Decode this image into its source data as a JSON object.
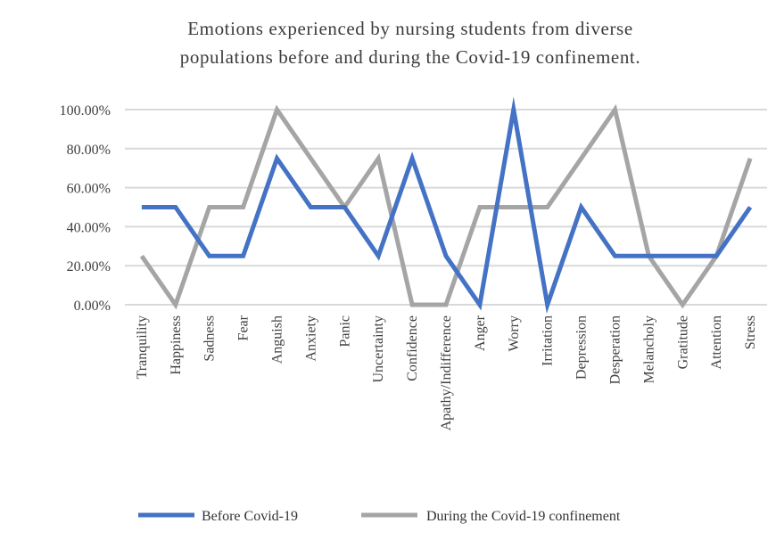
{
  "chart_data": {
    "type": "line",
    "title_lines": [
      "Emotions experienced by nursing students from diverse",
      "populations before and during the Covid-19 confinement."
    ],
    "categories": [
      "Tranquility",
      "Happiness",
      "Sadness",
      "Fear",
      "Anguish",
      "Anxiety",
      "Panic",
      "Uncertainty",
      "Confidence",
      "Apathy/Indifference",
      "Anger",
      "Worry",
      "Irritation",
      "Depression",
      "Desperation",
      "Melancholy",
      "Gratitude",
      "Attention",
      "Stress"
    ],
    "series": [
      {
        "name": "Before Covid-19",
        "color": "#4472c4",
        "values": [
          50,
          50,
          25,
          25,
          75,
          50,
          50,
          25,
          75,
          25,
          0,
          100,
          0,
          50,
          25,
          25,
          25,
          25,
          50
        ]
      },
      {
        "name": "During the Covid-19 confinement",
        "color": "#a5a5a5",
        "values": [
          25,
          0,
          50,
          50,
          100,
          75,
          50,
          75,
          0,
          0,
          50,
          50,
          50,
          75,
          100,
          25,
          0,
          25,
          75
        ]
      }
    ],
    "y_ticks": [
      "0.00%",
      "20.00%",
      "40.00%",
      "60.00%",
      "80.00%",
      "100.00%"
    ],
    "ylim": [
      0,
      100
    ],
    "grid": true,
    "legend_position": "bottom",
    "xlabel": "",
    "ylabel": ""
  }
}
